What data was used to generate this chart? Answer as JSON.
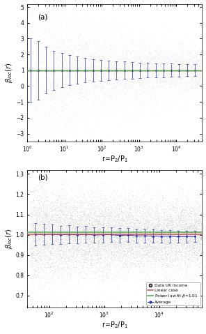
{
  "panel_a": {
    "label": "(a)",
    "xlim": [
      1.0,
      50000
    ],
    "ylim": [
      -3.5,
      5.2
    ],
    "yticks": [
      -3,
      -2,
      -1,
      0,
      1,
      2,
      3,
      4,
      5
    ],
    "xlabel": "r=P$_2$/P$_1$",
    "ylabel": "$\\beta_{loc}(r)$",
    "linear_y": 1.0,
    "linear_color": "#dd4444",
    "powerlaw_y": 1.0,
    "powerlaw_color": "#44aa44",
    "avg_color": "#2233bb",
    "scatter_color": "#bbbbbb",
    "scatter_alpha": 0.15,
    "scatter_size": 0.3,
    "n_scatter": 8000,
    "n_avg": 22
  },
  "panel_b": {
    "label": "(b)",
    "xlim": [
      40,
      60000
    ],
    "ylim": [
      0.64,
      1.32
    ],
    "yticks": [
      0.7,
      0.8,
      0.9,
      1.0,
      1.1,
      1.2,
      1.3
    ],
    "xlabel": "r=P$_2$/P$_1$",
    "ylabel": "$\\beta_{loc}(r)$",
    "linear_y": 1.002,
    "linear_color": "#dd4444",
    "powerlaw_y": 1.012,
    "powerlaw_color": "#44aa44",
    "avg_color": "#2233bb",
    "scatter_color": "#aaaaaa",
    "scatter_alpha": 0.18,
    "scatter_size": 0.4,
    "n_scatter": 12000,
    "n_avg": 20,
    "legend_labels": [
      "Data UK income",
      "Linear case",
      "Power law fit $\\beta$=1.01",
      "Average"
    ]
  }
}
